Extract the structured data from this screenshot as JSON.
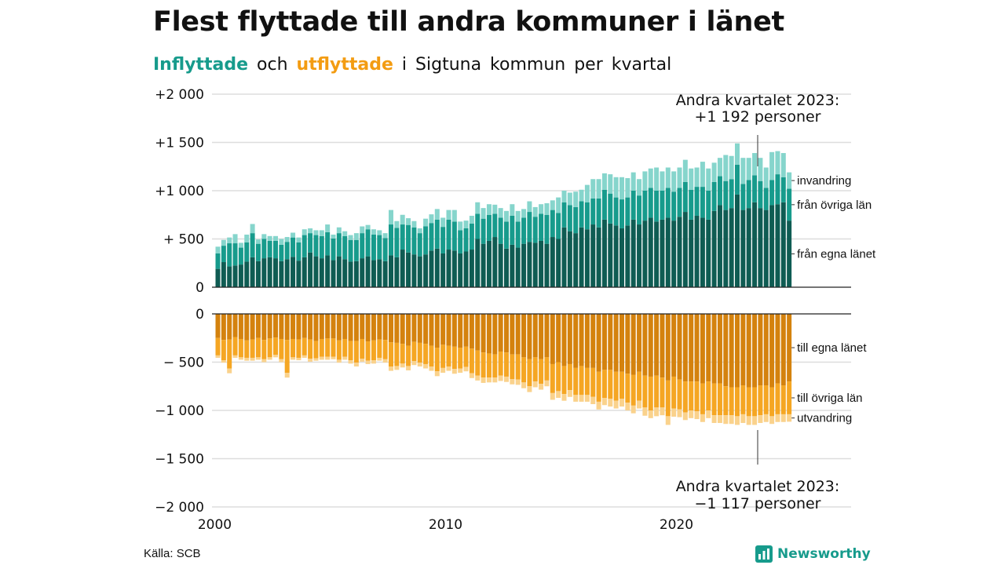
{
  "title": "Flest flyttade till andra kommuner i länet",
  "subtitle": {
    "in_word": "Inflyttade",
    "and_word": "och",
    "out_word": "utflyttade",
    "rest": "i Sigtuna  kommun  per  kvartal"
  },
  "source": "Källa: SCB",
  "logo_text": "Newsworthy",
  "colors": {
    "in_dark": "#0f5c53",
    "in_mid": "#179b8c",
    "in_light": "#86d5cc",
    "out_dark": "#d4820e",
    "out_mid": "#f5a623",
    "out_light": "#fad28c",
    "grid": "#dddddd"
  },
  "chart_data": {
    "type": "bar",
    "stacked": true,
    "x_start": 2000,
    "x_ticks": [
      "2000",
      "2010",
      "2020"
    ],
    "top_panel": {
      "y_tick_labels": [
        "0",
        "+  500",
        "+1 000",
        "+1 500",
        "+2 000"
      ],
      "y_ticks": [
        0,
        500,
        1000,
        1500,
        2000
      ],
      "ylim": [
        0,
        2000
      ],
      "series": [
        {
          "name": "från egna länet",
          "values": [
            190,
            260,
            215,
            225,
            235,
            265,
            310,
            270,
            300,
            310,
            300,
            270,
            290,
            315,
            275,
            310,
            360,
            320,
            300,
            330,
            280,
            320,
            290,
            265,
            270,
            300,
            320,
            280,
            290,
            270,
            330,
            310,
            390,
            360,
            340,
            320,
            340,
            380,
            400,
            350,
            390,
            380,
            350,
            370,
            390,
            500,
            450,
            480,
            520,
            450,
            400,
            440,
            410,
            450,
            470,
            460,
            480,
            450,
            520,
            500,
            620,
            580,
            560,
            620,
            600,
            650,
            620,
            700,
            660,
            640,
            610,
            640,
            700,
            650,
            690,
            720,
            680,
            700,
            720,
            690,
            730,
            780,
            700,
            740,
            720,
            700,
            790,
            850,
            800,
            820,
            960,
            800,
            820,
            880,
            820,
            800,
            850,
            860,
            880,
            690
          ]
        },
        {
          "name": "från övriga län",
          "values": [
            160,
            170,
            240,
            230,
            175,
            200,
            250,
            180,
            200,
            170,
            180,
            170,
            180,
            200,
            190,
            230,
            200,
            220,
            230,
            240,
            225,
            240,
            240,
            225,
            220,
            260,
            280,
            265,
            250,
            240,
            320,
            305,
            260,
            285,
            280,
            240,
            290,
            285,
            300,
            275,
            310,
            300,
            240,
            240,
            270,
            260,
            260,
            270,
            240,
            270,
            280,
            300,
            270,
            270,
            310,
            270,
            280,
            300,
            280,
            270,
            260,
            270,
            270,
            270,
            280,
            270,
            300,
            310,
            310,
            290,
            300,
            290,
            300,
            300,
            310,
            310,
            320,
            300,
            310,
            300,
            300,
            310,
            310,
            300,
            320,
            300,
            300,
            300,
            300,
            300,
            310,
            270,
            290,
            280,
            280,
            230,
            260,
            310,
            260,
            330
          ]
        },
        {
          "name": "invandring",
          "values": [
            70,
            60,
            60,
            95,
            50,
            80,
            95,
            45,
            50,
            50,
            50,
            60,
            50,
            50,
            50,
            60,
            50,
            50,
            60,
            80,
            40,
            60,
            50,
            50,
            70,
            70,
            45,
            55,
            50,
            50,
            150,
            70,
            100,
            70,
            65,
            50,
            80,
            90,
            110,
            95,
            100,
            120,
            90,
            80,
            80,
            120,
            110,
            110,
            95,
            100,
            110,
            120,
            110,
            90,
            110,
            100,
            100,
            120,
            100,
            160,
            120,
            130,
            160,
            120,
            180,
            200,
            200,
            170,
            200,
            210,
            230,
            200,
            190,
            170,
            200,
            200,
            240,
            200,
            210,
            210,
            210,
            230,
            220,
            200,
            260,
            230,
            200,
            190,
            270,
            240,
            220,
            270,
            230,
            230,
            240,
            210,
            290,
            240,
            250,
            170
          ]
        }
      ]
    },
    "bottom_panel": {
      "y_tick_labels": [
        "0",
        "−  500",
        "−1 000",
        "−1 500",
        "−2 000"
      ],
      "y_ticks": [
        0,
        -500,
        -1000,
        -1500,
        -2000
      ],
      "ylim": [
        -2000,
        0
      ],
      "series": [
        {
          "name": "till egna länet",
          "values": [
            -250,
            -270,
            -265,
            -240,
            -260,
            -275,
            -265,
            -250,
            -270,
            -255,
            -245,
            -260,
            -270,
            -260,
            -265,
            -250,
            -265,
            -280,
            -260,
            -255,
            -255,
            -275,
            -260,
            -280,
            -280,
            -260,
            -285,
            -275,
            -265,
            -270,
            -295,
            -300,
            -310,
            -330,
            -290,
            -300,
            -310,
            -330,
            -350,
            -320,
            -330,
            -340,
            -350,
            -340,
            -360,
            -380,
            -400,
            -410,
            -420,
            -390,
            -400,
            -420,
            -420,
            -450,
            -470,
            -450,
            -470,
            -450,
            -520,
            -500,
            -540,
            -520,
            -560,
            -540,
            -560,
            -560,
            -600,
            -580,
            -580,
            -600,
            -600,
            -620,
            -630,
            -600,
            -640,
            -650,
            -640,
            -660,
            -690,
            -650,
            -680,
            -700,
            -700,
            -700,
            -720,
            -700,
            -720,
            -720,
            -750,
            -760,
            -760,
            -740,
            -760,
            -760,
            -740,
            -740,
            -760,
            -720,
            -740,
            -700
          ]
        },
        {
          "name": "till övriga län",
          "values": [
            -180,
            -210,
            -300,
            -190,
            -190,
            -180,
            -190,
            -200,
            -200,
            -195,
            -180,
            -210,
            -340,
            -190,
            -190,
            -180,
            -200,
            -180,
            -185,
            -190,
            -190,
            -200,
            -185,
            -200,
            -225,
            -205,
            -200,
            -205,
            -190,
            -200,
            -250,
            -240,
            -205,
            -210,
            -200,
            -205,
            -210,
            -215,
            -245,
            -240,
            -215,
            -230,
            -215,
            -210,
            -255,
            -260,
            -260,
            -250,
            -240,
            -250,
            -250,
            -255,
            -260,
            -260,
            -280,
            -250,
            -255,
            -240,
            -300,
            -300,
            -290,
            -270,
            -280,
            -300,
            -280,
            -300,
            -310,
            -290,
            -300,
            -300,
            -280,
            -300,
            -320,
            -300,
            -330,
            -350,
            -330,
            -310,
            -370,
            -330,
            -310,
            -320,
            -300,
            -310,
            -320,
            -300,
            -330,
            -330,
            -300,
            -290,
            -300,
            -300,
            -300,
            -300,
            -310,
            -300,
            -300,
            -320,
            -300,
            -340
          ]
        },
        {
          "name": "utvandring",
          "values": [
            -25,
            -25,
            -50,
            -25,
            -25,
            -30,
            -30,
            -25,
            -30,
            -25,
            -25,
            -30,
            -50,
            -25,
            -25,
            -25,
            -30,
            -25,
            -30,
            -30,
            -25,
            -30,
            -30,
            -35,
            -40,
            -30,
            -35,
            -35,
            -30,
            -35,
            -45,
            -40,
            -40,
            -45,
            -40,
            -40,
            -45,
            -45,
            -50,
            -50,
            -45,
            -50,
            -45,
            -45,
            -50,
            -50,
            -55,
            -50,
            -50,
            -55,
            -55,
            -55,
            -55,
            -60,
            -60,
            -60,
            -60,
            -60,
            -70,
            -70,
            -70,
            -70,
            -70,
            -70,
            -70,
            -75,
            -80,
            -75,
            -80,
            -80,
            -80,
            -80,
            -80,
            -80,
            -85,
            -80,
            -90,
            -80,
            -90,
            -85,
            -80,
            -80,
            -80,
            -80,
            -80,
            -80,
            -80,
            -80,
            -90,
            -90,
            -90,
            -90,
            -90,
            -90,
            -80,
            -80,
            -80,
            -80,
            -80,
            -77
          ]
        }
      ]
    },
    "annotations": [
      {
        "text_line1": "Andra kvartalet 2023:",
        "text_line2": "+1 192 personer"
      },
      {
        "text_line1": "Andra kvartalet 2023:",
        "text_line2": "−1 117 personer"
      }
    ]
  }
}
